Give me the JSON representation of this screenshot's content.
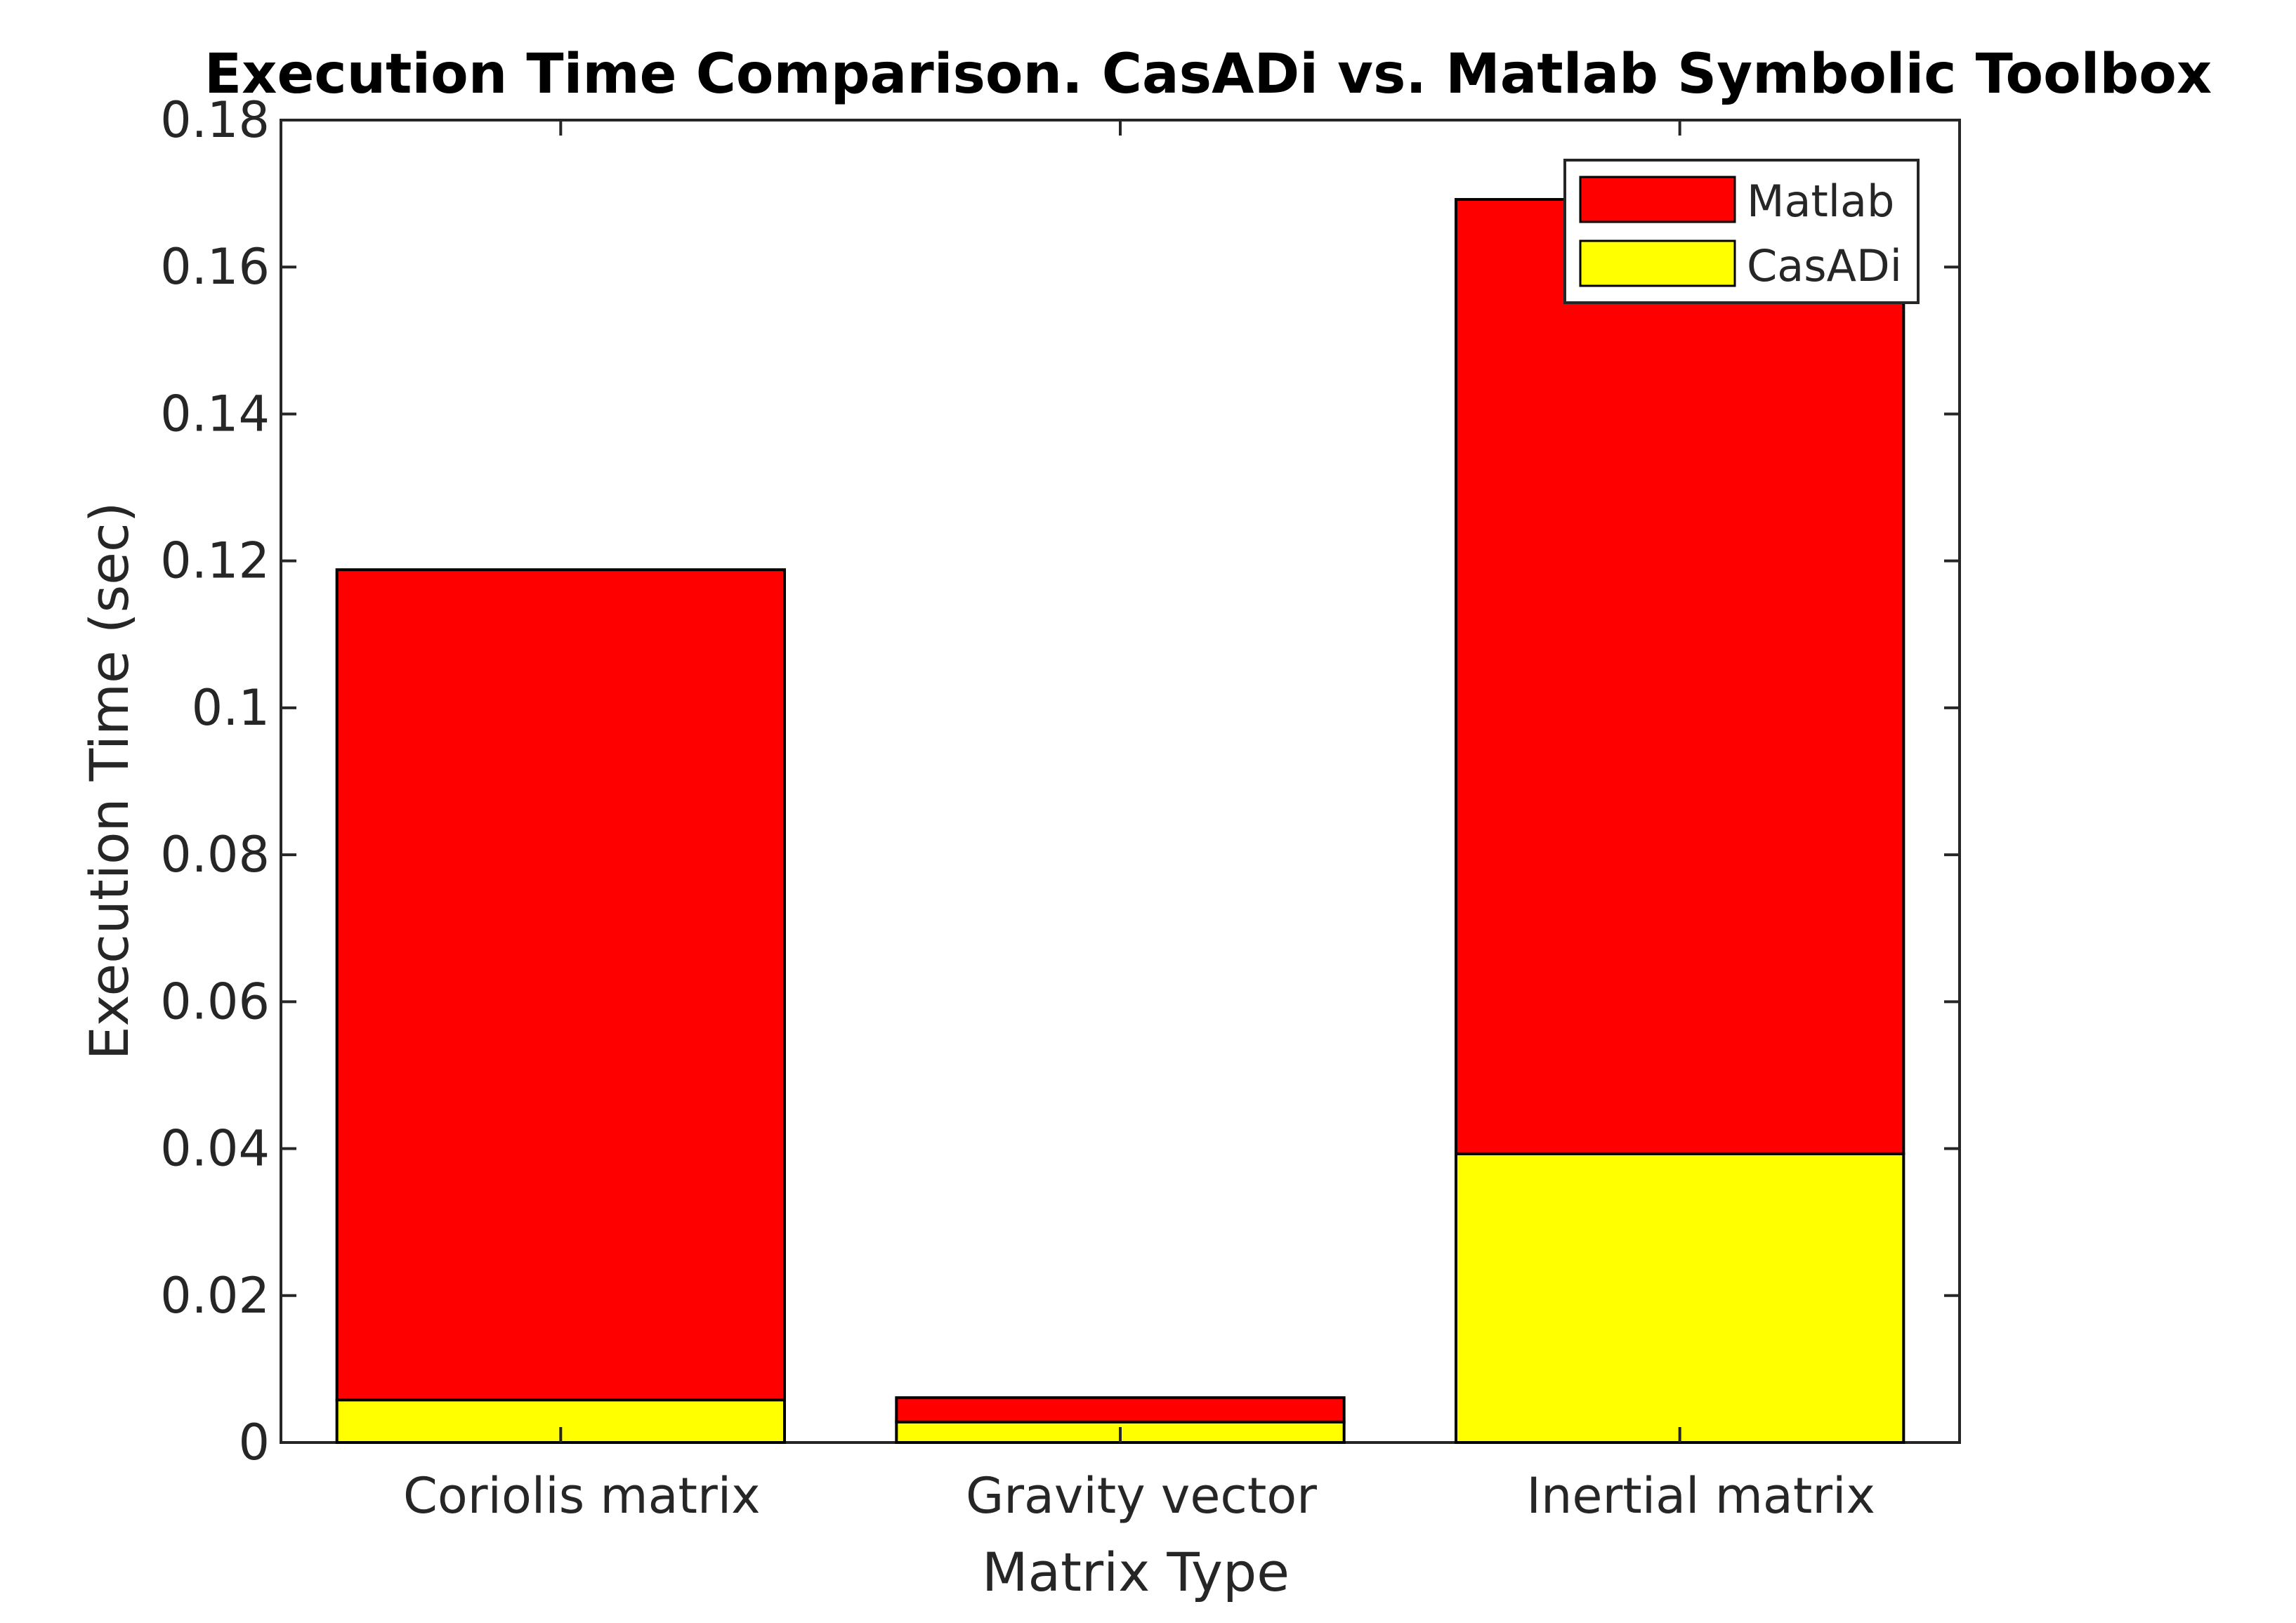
{
  "chart_data": {
    "type": "bar",
    "stacked": true,
    "title": "Execution Time Comparison. CasADi vs. Matlab Symbolic Toolbox",
    "xlabel": "Matrix Type",
    "ylabel": "Execution Time (sec)",
    "categories": [
      "Coriolis matrix",
      "Gravity vector",
      "Inertial matrix"
    ],
    "series": [
      {
        "name": "CasADi",
        "color": "#ffff00",
        "values": [
          0.0058,
          0.0028,
          0.0393
        ]
      },
      {
        "name": "Matlab",
        "color": "#ff0000",
        "values": [
          0.113,
          0.0033,
          0.1299
        ]
      }
    ],
    "ylim": [
      0,
      0.18
    ],
    "yticks": [
      "0",
      "0.02",
      "0.04",
      "0.06",
      "0.08",
      "0.1",
      "0.12",
      "0.14",
      "0.16",
      "0.18"
    ],
    "grid": false,
    "legend": {
      "position": "top-right",
      "entries": [
        "Matlab",
        "CasADi"
      ]
    }
  }
}
